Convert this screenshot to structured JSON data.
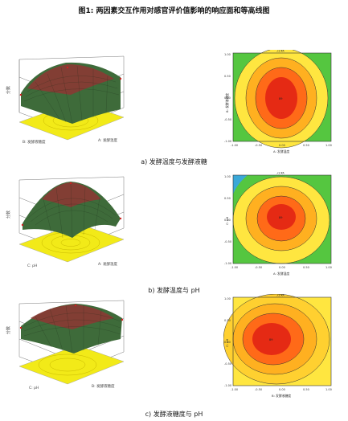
{
  "figure": {
    "title": "图1: 两因素交互作用对感官评价值影响的响应面和等高线图"
  },
  "panels": [
    {
      "caption": "a) 发酵温度与发酵液糖",
      "surface": {
        "z_label": "分数",
        "x_label": "A: 发酵温度",
        "y_label": "B: 发酵液糖度"
      },
      "contour": {
        "title": "分数",
        "x_label": "A: 发酵温度",
        "y_label": "B: 发酵液糖度",
        "x_ticks": [
          "-1.00",
          "-0.50",
          "0.00",
          "0.50",
          "1.00"
        ],
        "y_ticks": [
          "-1.00",
          "-0.50",
          "0.00",
          "0.50",
          "1.00"
        ],
        "center_label": "89"
      }
    },
    {
      "caption": "b) 发酵温度与 pH",
      "surface": {
        "z_label": "分数",
        "x_label": "A: 发酵温度",
        "y_label": "C: pH"
      },
      "contour": {
        "title": "分数",
        "x_label": "A: 发酵温度",
        "y_label": "C: pH",
        "x_ticks": [
          "-1.00",
          "-0.50",
          "0.00",
          "0.50",
          "1.00"
        ],
        "y_ticks": [
          "-1.00",
          "-0.50",
          "0.00",
          "0.50",
          "1.00"
        ],
        "center_label": "89"
      }
    },
    {
      "caption": "c) 发酵液糖度与 pH",
      "surface": {
        "z_label": "分数",
        "x_label": "B: 发酵液糖度",
        "y_label": "C: pH"
      },
      "contour": {
        "title": "分数",
        "x_label": "B: 发酵液糖度",
        "y_label": "C: pH",
        "x_ticks": [
          "-1.00",
          "-0.50",
          "0.00",
          "0.50",
          "1.00"
        ],
        "y_ticks": [
          "-1.00",
          "-0.50",
          "0.00",
          "0.50",
          "1.00"
        ],
        "center_label": "89"
      }
    }
  ],
  "colors": {
    "surface_top": "#8a2a2a",
    "surface_mid": "#3d6b3a",
    "floor": "#f2ea18",
    "contour_center": "#e52a14",
    "contour_mid": "#ffbe1e",
    "contour_outer": "#55c640",
    "contour_edge": "#3aa8d8"
  }
}
